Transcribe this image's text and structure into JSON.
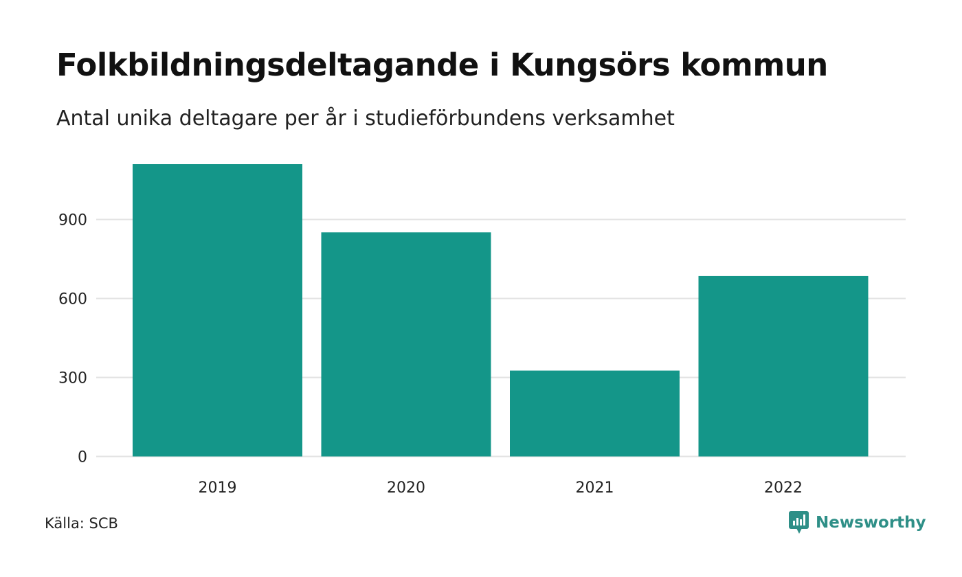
{
  "header": {
    "title": "Folkbildningsdeltagande i Kungsörs kommun",
    "subtitle": "Antal unika deltagare per år i studieförbundens verksamhet"
  },
  "footer": {
    "source": "Källa: SCB",
    "brand": "Newsworthy",
    "brand_icon": "newsworthy-logo-icon",
    "brand_color": "#2e8f87"
  },
  "chart_data": {
    "type": "bar",
    "categories": [
      "2019",
      "2020",
      "2021",
      "2022"
    ],
    "values": [
      1110,
      851,
      326,
      685
    ],
    "yticks": [
      0,
      300,
      600,
      900
    ],
    "ytick_labels": [
      "0",
      "300",
      "600",
      "900"
    ],
    "ylim": [
      0,
      1110
    ],
    "grid": true,
    "bar_color": "#149689",
    "grid_color": "#e3e3e3"
  }
}
